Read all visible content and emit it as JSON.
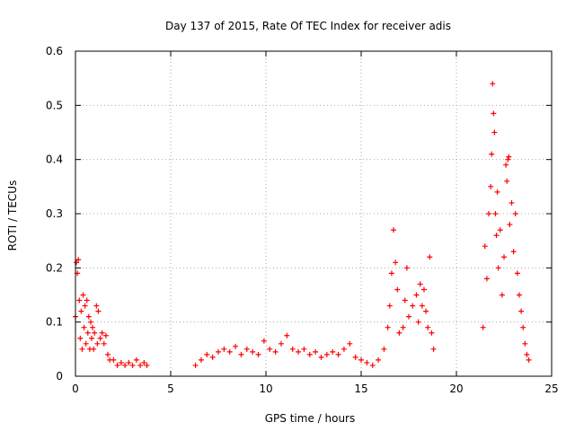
{
  "chart_data": {
    "type": "scatter",
    "title": "Day 137 of 2015, Rate Of TEC Index for receiver adis",
    "xlabel": "GPS time / hours",
    "ylabel": "ROTI / TECUs",
    "xlim": [
      0,
      25
    ],
    "ylim": [
      0,
      0.6
    ],
    "xticks": [
      0,
      5,
      10,
      15,
      20,
      25
    ],
    "yticks": [
      0,
      0.1,
      0.2,
      0.3,
      0.4,
      0.5,
      0.6
    ],
    "xtick_labels": [
      "0",
      "5",
      "10",
      "15",
      "20",
      "25"
    ],
    "ytick_labels": [
      "0",
      "0.1",
      "0.2",
      "0.3",
      "0.4",
      "0.5",
      "0.6"
    ],
    "grid": true,
    "marker": "+",
    "series": [
      {
        "name": "ROTI",
        "color": "#ff0000",
        "points": [
          [
            0.0,
            0.11
          ],
          [
            0.05,
            0.21
          ],
          [
            0.1,
            0.19
          ],
          [
            0.15,
            0.215
          ],
          [
            0.2,
            0.14
          ],
          [
            0.25,
            0.07
          ],
          [
            0.3,
            0.12
          ],
          [
            0.35,
            0.05
          ],
          [
            0.4,
            0.15
          ],
          [
            0.45,
            0.09
          ],
          [
            0.5,
            0.13
          ],
          [
            0.55,
            0.06
          ],
          [
            0.6,
            0.14
          ],
          [
            0.65,
            0.08
          ],
          [
            0.7,
            0.11
          ],
          [
            0.75,
            0.05
          ],
          [
            0.8,
            0.1
          ],
          [
            0.85,
            0.07
          ],
          [
            0.9,
            0.09
          ],
          [
            0.95,
            0.05
          ],
          [
            1.0,
            0.08
          ],
          [
            1.1,
            0.13
          ],
          [
            1.15,
            0.06
          ],
          [
            1.2,
            0.12
          ],
          [
            1.3,
            0.07
          ],
          [
            1.4,
            0.08
          ],
          [
            1.5,
            0.06
          ],
          [
            1.6,
            0.075
          ],
          [
            1.7,
            0.04
          ],
          [
            1.8,
            0.03
          ],
          [
            2.0,
            0.03
          ],
          [
            2.2,
            0.02
          ],
          [
            2.4,
            0.025
          ],
          [
            2.6,
            0.02
          ],
          [
            2.8,
            0.025
          ],
          [
            3.0,
            0.02
          ],
          [
            3.2,
            0.03
          ],
          [
            3.4,
            0.02
          ],
          [
            3.6,
            0.025
          ],
          [
            3.75,
            0.02
          ],
          [
            6.3,
            0.02
          ],
          [
            6.6,
            0.03
          ],
          [
            6.9,
            0.04
          ],
          [
            7.2,
            0.035
          ],
          [
            7.5,
            0.045
          ],
          [
            7.8,
            0.05
          ],
          [
            8.1,
            0.045
          ],
          [
            8.4,
            0.055
          ],
          [
            8.7,
            0.04
          ],
          [
            9.0,
            0.05
          ],
          [
            9.3,
            0.045
          ],
          [
            9.6,
            0.04
          ],
          [
            9.9,
            0.065
          ],
          [
            10.2,
            0.05
          ],
          [
            10.5,
            0.045
          ],
          [
            10.8,
            0.06
          ],
          [
            11.1,
            0.075
          ],
          [
            11.4,
            0.05
          ],
          [
            11.7,
            0.045
          ],
          [
            12.0,
            0.05
          ],
          [
            12.3,
            0.04
          ],
          [
            12.6,
            0.045
          ],
          [
            12.9,
            0.035
          ],
          [
            13.2,
            0.04
          ],
          [
            13.5,
            0.045
          ],
          [
            13.8,
            0.04
          ],
          [
            14.1,
            0.05
          ],
          [
            14.4,
            0.06
          ],
          [
            14.7,
            0.035
          ],
          [
            15.0,
            0.03
          ],
          [
            15.3,
            0.025
          ],
          [
            15.6,
            0.02
          ],
          [
            15.9,
            0.03
          ],
          [
            16.2,
            0.05
          ],
          [
            16.4,
            0.09
          ],
          [
            16.5,
            0.13
          ],
          [
            16.6,
            0.19
          ],
          [
            16.7,
            0.27
          ],
          [
            16.8,
            0.21
          ],
          [
            16.9,
            0.16
          ],
          [
            17.0,
            0.08
          ],
          [
            17.2,
            0.09
          ],
          [
            17.3,
            0.14
          ],
          [
            17.4,
            0.2
          ],
          [
            17.5,
            0.11
          ],
          [
            17.7,
            0.13
          ],
          [
            17.9,
            0.15
          ],
          [
            18.0,
            0.1
          ],
          [
            18.1,
            0.17
          ],
          [
            18.2,
            0.13
          ],
          [
            18.3,
            0.16
          ],
          [
            18.4,
            0.12
          ],
          [
            18.5,
            0.09
          ],
          [
            18.6,
            0.22
          ],
          [
            18.7,
            0.08
          ],
          [
            18.8,
            0.05
          ],
          [
            21.4,
            0.09
          ],
          [
            21.5,
            0.24
          ],
          [
            21.6,
            0.18
          ],
          [
            21.7,
            0.3
          ],
          [
            21.8,
            0.35
          ],
          [
            21.85,
            0.41
          ],
          [
            21.9,
            0.54
          ],
          [
            21.95,
            0.485
          ],
          [
            22.0,
            0.45
          ],
          [
            22.05,
            0.3
          ],
          [
            22.1,
            0.26
          ],
          [
            22.15,
            0.34
          ],
          [
            22.2,
            0.2
          ],
          [
            22.3,
            0.27
          ],
          [
            22.4,
            0.15
          ],
          [
            22.5,
            0.22
          ],
          [
            22.6,
            0.39
          ],
          [
            22.65,
            0.36
          ],
          [
            22.7,
            0.4
          ],
          [
            22.75,
            0.405
          ],
          [
            22.8,
            0.28
          ],
          [
            22.9,
            0.32
          ],
          [
            23.0,
            0.23
          ],
          [
            23.1,
            0.3
          ],
          [
            23.2,
            0.19
          ],
          [
            23.3,
            0.15
          ],
          [
            23.4,
            0.12
          ],
          [
            23.5,
            0.09
          ],
          [
            23.6,
            0.06
          ],
          [
            23.7,
            0.04
          ],
          [
            23.8,
            0.03
          ]
        ]
      }
    ]
  }
}
